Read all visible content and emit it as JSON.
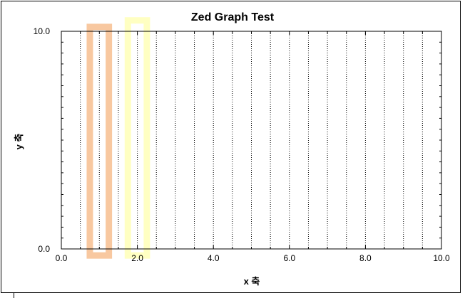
{
  "chart_data": {
    "type": "bar",
    "title": "Zed Graph Test",
    "xlabel": "x 축",
    "ylabel": "y 축",
    "xlim": [
      0,
      10
    ],
    "ylim": [
      0,
      10
    ],
    "xticks": [
      0,
      2,
      4,
      6,
      8,
      10
    ],
    "xtick_labels": [
      "0.0",
      "2.0",
      "4.0",
      "6.0",
      "8.0",
      "10.0"
    ],
    "ytick_labels_shown": [
      "0.0",
      "10.0"
    ],
    "x_major_step": 2,
    "x_minor_step": 0.5,
    "y_minor_step": 0.5,
    "grid": "vertical-dotted",
    "bars": [
      {
        "x_start": 0.75,
        "x_end": 1.25,
        "y_start": -0.3,
        "y_end": 10.2,
        "color": "#f4a460",
        "fill": "none",
        "opacity": 0.6
      },
      {
        "x_start": 1.75,
        "x_end": 2.25,
        "y_start": -0.3,
        "y_end": 10.5,
        "color": "#ffff99",
        "fill": "none",
        "opacity": 0.6
      }
    ]
  }
}
